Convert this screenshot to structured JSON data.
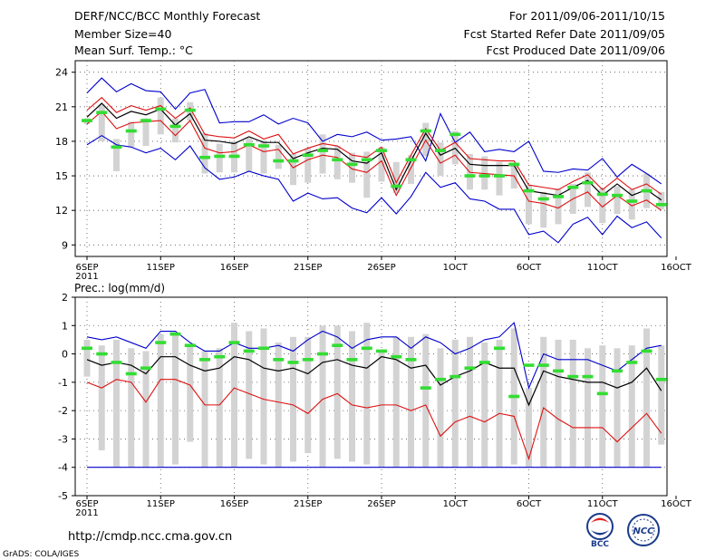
{
  "header": {
    "title": "DERF/NCC/BCC Monthly Forecast",
    "member_size": "Member Size=40",
    "variable": "Mean Surf. Temp.: °C",
    "forecast_for": "For 2011/09/06-2011/10/15",
    "started_refer": "Fcst Started Refer Date 2011/09/05",
    "produced": "Fcst Produced Date 2011/09/06"
  },
  "footer": {
    "url": "http://cmdp.ncc.cma.gov.cn",
    "credit": "GrADS: COLA/IGES",
    "logo_bcc": "BCC",
    "logo_ncc": "NCC"
  },
  "colors": {
    "envelope": "#0000cc",
    "percentile": "#dd1111",
    "median": "#000000",
    "bar": "#d3d3d3",
    "marker": "#33dd33",
    "grid": "#555555"
  },
  "chart_data": [
    {
      "type": "line",
      "title": "Mean Surf. Temp.: °C",
      "x_tick_labels": [
        "6SEP",
        "11SEP",
        "16SEP",
        "21SEP",
        "26SEP",
        "1OCT",
        "6OCT",
        "11OCT",
        "16OCT"
      ],
      "x_year_label": "2011",
      "ylim": [
        8,
        25
      ],
      "y_ticks": [
        9,
        12,
        15,
        18,
        21,
        24
      ],
      "series": [
        {
          "name": "max",
          "values": [
            22.2,
            23.5,
            22.3,
            23.0,
            22.4,
            22.3,
            20.8,
            22.2,
            22.5,
            19.6,
            19.7,
            19.7,
            20.3,
            19.5,
            20.0,
            19.6,
            18.0,
            18.6,
            18.4,
            18.8,
            18.1,
            18.2,
            18.4,
            16.3,
            20.4,
            17.9,
            18.8,
            17.1,
            17.3,
            17.1,
            18.0,
            15.4,
            15.3,
            15.6,
            15.5,
            16.5,
            14.9,
            16.0,
            15.2,
            14.3
          ]
        },
        {
          "name": "p90",
          "values": [
            20.7,
            21.8,
            20.5,
            21.1,
            20.7,
            21.1,
            20.0,
            20.9,
            18.6,
            18.4,
            18.3,
            18.9,
            18.2,
            18.6,
            16.9,
            17.4,
            17.8,
            17.6,
            16.8,
            16.6,
            17.5,
            14.4,
            16.8,
            19.1,
            17.2,
            17.9,
            16.5,
            16.4,
            16.3,
            16.3,
            14.2,
            14.0,
            13.8,
            14.5,
            15.1,
            13.8,
            14.8,
            13.8,
            14.3,
            13.4
          ]
        },
        {
          "name": "median",
          "values": [
            20.1,
            21.3,
            20.0,
            20.6,
            20.3,
            20.8,
            19.4,
            20.4,
            18.1,
            18.0,
            17.8,
            18.4,
            17.9,
            17.9,
            16.5,
            17.0,
            17.4,
            17.3,
            16.3,
            16.1,
            17.0,
            13.8,
            16.3,
            18.7,
            16.8,
            17.4,
            16.0,
            15.9,
            15.9,
            15.9,
            13.7,
            13.5,
            13.3,
            14.0,
            14.6,
            13.3,
            14.3,
            13.3,
            13.8,
            12.9
          ]
        },
        {
          "name": "p10",
          "values": [
            19.5,
            20.6,
            19.1,
            19.6,
            19.7,
            19.8,
            18.5,
            19.8,
            17.4,
            17.0,
            17.1,
            17.7,
            17.1,
            17.3,
            15.7,
            16.4,
            16.8,
            16.6,
            15.6,
            15.3,
            16.3,
            13.3,
            15.7,
            18.1,
            16.1,
            16.8,
            15.3,
            15.2,
            15.1,
            15.0,
            12.8,
            12.6,
            12.2,
            13.0,
            13.6,
            12.3,
            13.3,
            12.4,
            12.9,
            12.0
          ]
        },
        {
          "name": "min",
          "values": [
            17.7,
            18.5,
            17.7,
            17.5,
            17.0,
            17.4,
            16.4,
            17.6,
            15.7,
            14.7,
            14.9,
            15.4,
            15.0,
            14.7,
            12.8,
            13.5,
            13.0,
            13.1,
            12.2,
            11.8,
            13.1,
            11.7,
            13.2,
            15.3,
            14.0,
            14.4,
            13.0,
            12.8,
            12.1,
            12.1,
            9.9,
            10.2,
            9.2,
            10.8,
            11.4,
            9.9,
            11.5,
            10.5,
            11.0,
            9.6
          ]
        },
        {
          "name": "bar_top",
          "values": [
            20.0,
            21.2,
            18.2,
            19.7,
            20.0,
            21.8,
            20.0,
            21.4,
            18.7,
            17.8,
            18.0,
            18.3,
            18.1,
            17.7,
            16.9,
            17.4,
            18.6,
            17.6,
            17.0,
            17.1,
            17.5,
            16.2,
            16.8,
            19.6,
            17.9,
            18.9,
            16.9,
            16.7,
            16.2,
            15.9,
            14.2,
            13.6,
            13.9,
            14.3,
            15.3,
            13.9,
            14.1,
            13.8,
            15.2,
            13.6
          ]
        },
        {
          "name": "bar_bottom",
          "values": [
            19.5,
            18.0,
            15.4,
            17.5,
            17.6,
            18.6,
            17.9,
            19.8,
            15.2,
            15.3,
            15.3,
            15.4,
            15.2,
            15.6,
            14.2,
            14.4,
            15.2,
            14.7,
            14.4,
            13.1,
            14.5,
            13.5,
            14.3,
            16.7,
            15.0,
            16.0,
            13.8,
            13.8,
            13.3,
            13.9,
            10.8,
            10.5,
            10.8,
            11.7,
            12.3,
            10.9,
            11.7,
            11.2,
            12.2,
            12.1
          ]
        },
        {
          "name": "control",
          "values": [
            19.8,
            20.5,
            17.5,
            18.9,
            19.8,
            20.8,
            19.3,
            20.7,
            16.6,
            16.7,
            16.7,
            17.7,
            17.6,
            16.3,
            16.3,
            16.8,
            17.2,
            16.4,
            16.0,
            16.4,
            17.2,
            14.1,
            16.4,
            18.9,
            17.2,
            18.6,
            15.0,
            15.0,
            15.0,
            16.0,
            13.7,
            13.0,
            13.2,
            14.0,
            14.4,
            13.4,
            13.3,
            12.8,
            13.7,
            12.5
          ]
        }
      ]
    },
    {
      "type": "line",
      "title": "Prec.: log(mm/d)",
      "x_tick_labels": [
        "6SEP",
        "11SEP",
        "16SEP",
        "21SEP",
        "26SEP",
        "1OCT",
        "6OCT",
        "11OCT",
        "16OCT"
      ],
      "x_year_label": "2011",
      "ylim": [
        -5,
        2
      ],
      "y_ticks": [
        -5,
        -4,
        -3,
        -2,
        -1,
        0,
        1,
        2
      ],
      "series": [
        {
          "name": "max",
          "values": [
            0.6,
            0.5,
            0.6,
            0.4,
            0.2,
            0.8,
            0.8,
            0.4,
            0.1,
            0.1,
            0.4,
            0.2,
            0.2,
            0.3,
            0.1,
            0.5,
            0.8,
            0.6,
            0.2,
            0.5,
            0.6,
            0.6,
            0.2,
            0.6,
            0.4,
            0.0,
            0.2,
            0.5,
            0.6,
            1.1,
            -1.2,
            0.0,
            -0.2,
            -0.2,
            -0.2,
            -0.4,
            -0.6,
            -0.2,
            0.2,
            0.3
          ]
        },
        {
          "name": "median",
          "values": [
            -0.2,
            -0.4,
            -0.3,
            -0.4,
            -0.7,
            -0.1,
            -0.1,
            -0.4,
            -0.6,
            -0.5,
            -0.1,
            -0.2,
            -0.5,
            -0.6,
            -0.5,
            -0.7,
            -0.3,
            -0.2,
            -0.4,
            -0.5,
            -0.1,
            -0.2,
            -0.5,
            -0.4,
            -1.1,
            -0.8,
            -0.6,
            -0.3,
            -0.5,
            -0.5,
            -1.8,
            -0.6,
            -0.8,
            -0.9,
            -1.0,
            -1.0,
            -1.2,
            -1.0,
            -0.5,
            -1.3
          ]
        },
        {
          "name": "p10",
          "values": [
            -1.0,
            -1.2,
            -0.9,
            -1.0,
            -1.7,
            -0.9,
            -0.9,
            -1.1,
            -1.8,
            -1.8,
            -1.2,
            -1.4,
            -1.6,
            -1.7,
            -1.8,
            -2.1,
            -1.6,
            -1.4,
            -1.8,
            -1.9,
            -1.8,
            -1.8,
            -2.0,
            -1.8,
            -2.9,
            -2.4,
            -2.2,
            -2.4,
            -2.1,
            -2.2,
            -3.7,
            -1.9,
            -2.3,
            -2.6,
            -2.6,
            -2.6,
            -3.1,
            -2.6,
            -2.1,
            -2.8
          ]
        },
        {
          "name": "min",
          "values": [
            -4.0,
            -4.0,
            -4.0,
            -4.0,
            -4.0,
            -4.0,
            -4.0,
            -4.0,
            -4.0,
            -4.0,
            -4.0,
            -4.0,
            -4.0,
            -4.0,
            -4.0,
            -4.0,
            -4.0,
            -4.0,
            -4.0,
            -4.0,
            -4.0,
            -4.0,
            -4.0,
            -4.0,
            -4.0,
            -4.0,
            -4.0,
            -4.0,
            -4.0,
            -4.0,
            -4.0,
            -4.0,
            -4.0,
            -4.0,
            -4.0,
            -4.0,
            -4.0,
            -4.0,
            -4.0,
            -4.0
          ]
        },
        {
          "name": "bar_top",
          "values": [
            0.5,
            0.3,
            0.5,
            0.2,
            0.1,
            0.7,
            0.7,
            0.3,
            0.1,
            0.2,
            1.1,
            0.8,
            0.9,
            0.4,
            0.6,
            0.6,
            1.0,
            1.0,
            0.8,
            1.1,
            0.1,
            0.6,
            0.6,
            0.7,
            0.2,
            0.5,
            0.6,
            0.4,
            0.5,
            0.9,
            -1.2,
            0.6,
            0.5,
            0.5,
            0.2,
            0.3,
            0.2,
            0.3,
            0.9,
            0.3
          ]
        },
        {
          "name": "bar_bottom",
          "values": [
            -0.8,
            -3.4,
            -4.0,
            -4.0,
            -4.0,
            -4.0,
            -3.9,
            -3.1,
            -4.0,
            -4.0,
            -4.0,
            -3.7,
            -3.9,
            -4.0,
            -3.8,
            -3.5,
            -4.0,
            -3.7,
            -3.8,
            -3.9,
            -4.0,
            -4.0,
            -4.0,
            -4.0,
            -4.0,
            -4.0,
            -4.0,
            -4.0,
            -4.0,
            -3.9,
            -4.0,
            -4.0,
            -4.0,
            -4.0,
            -4.0,
            -4.0,
            -4.0,
            -4.0,
            -4.0,
            -3.2
          ]
        },
        {
          "name": "control",
          "values": [
            0.2,
            0.0,
            -0.3,
            -0.7,
            -0.5,
            0.4,
            0.7,
            0.3,
            -0.2,
            -0.1,
            0.4,
            0.1,
            0.2,
            -0.2,
            -0.3,
            -0.2,
            0.0,
            0.3,
            -0.2,
            0.2,
            0.1,
            -0.1,
            -0.2,
            -1.2,
            -0.9,
            -0.8,
            -0.5,
            -0.3,
            0.2,
            -1.5,
            -0.4,
            -0.4,
            -0.6,
            -0.8,
            -0.8,
            -1.4,
            -0.6,
            -0.3,
            0.1,
            -0.9
          ]
        }
      ]
    }
  ]
}
